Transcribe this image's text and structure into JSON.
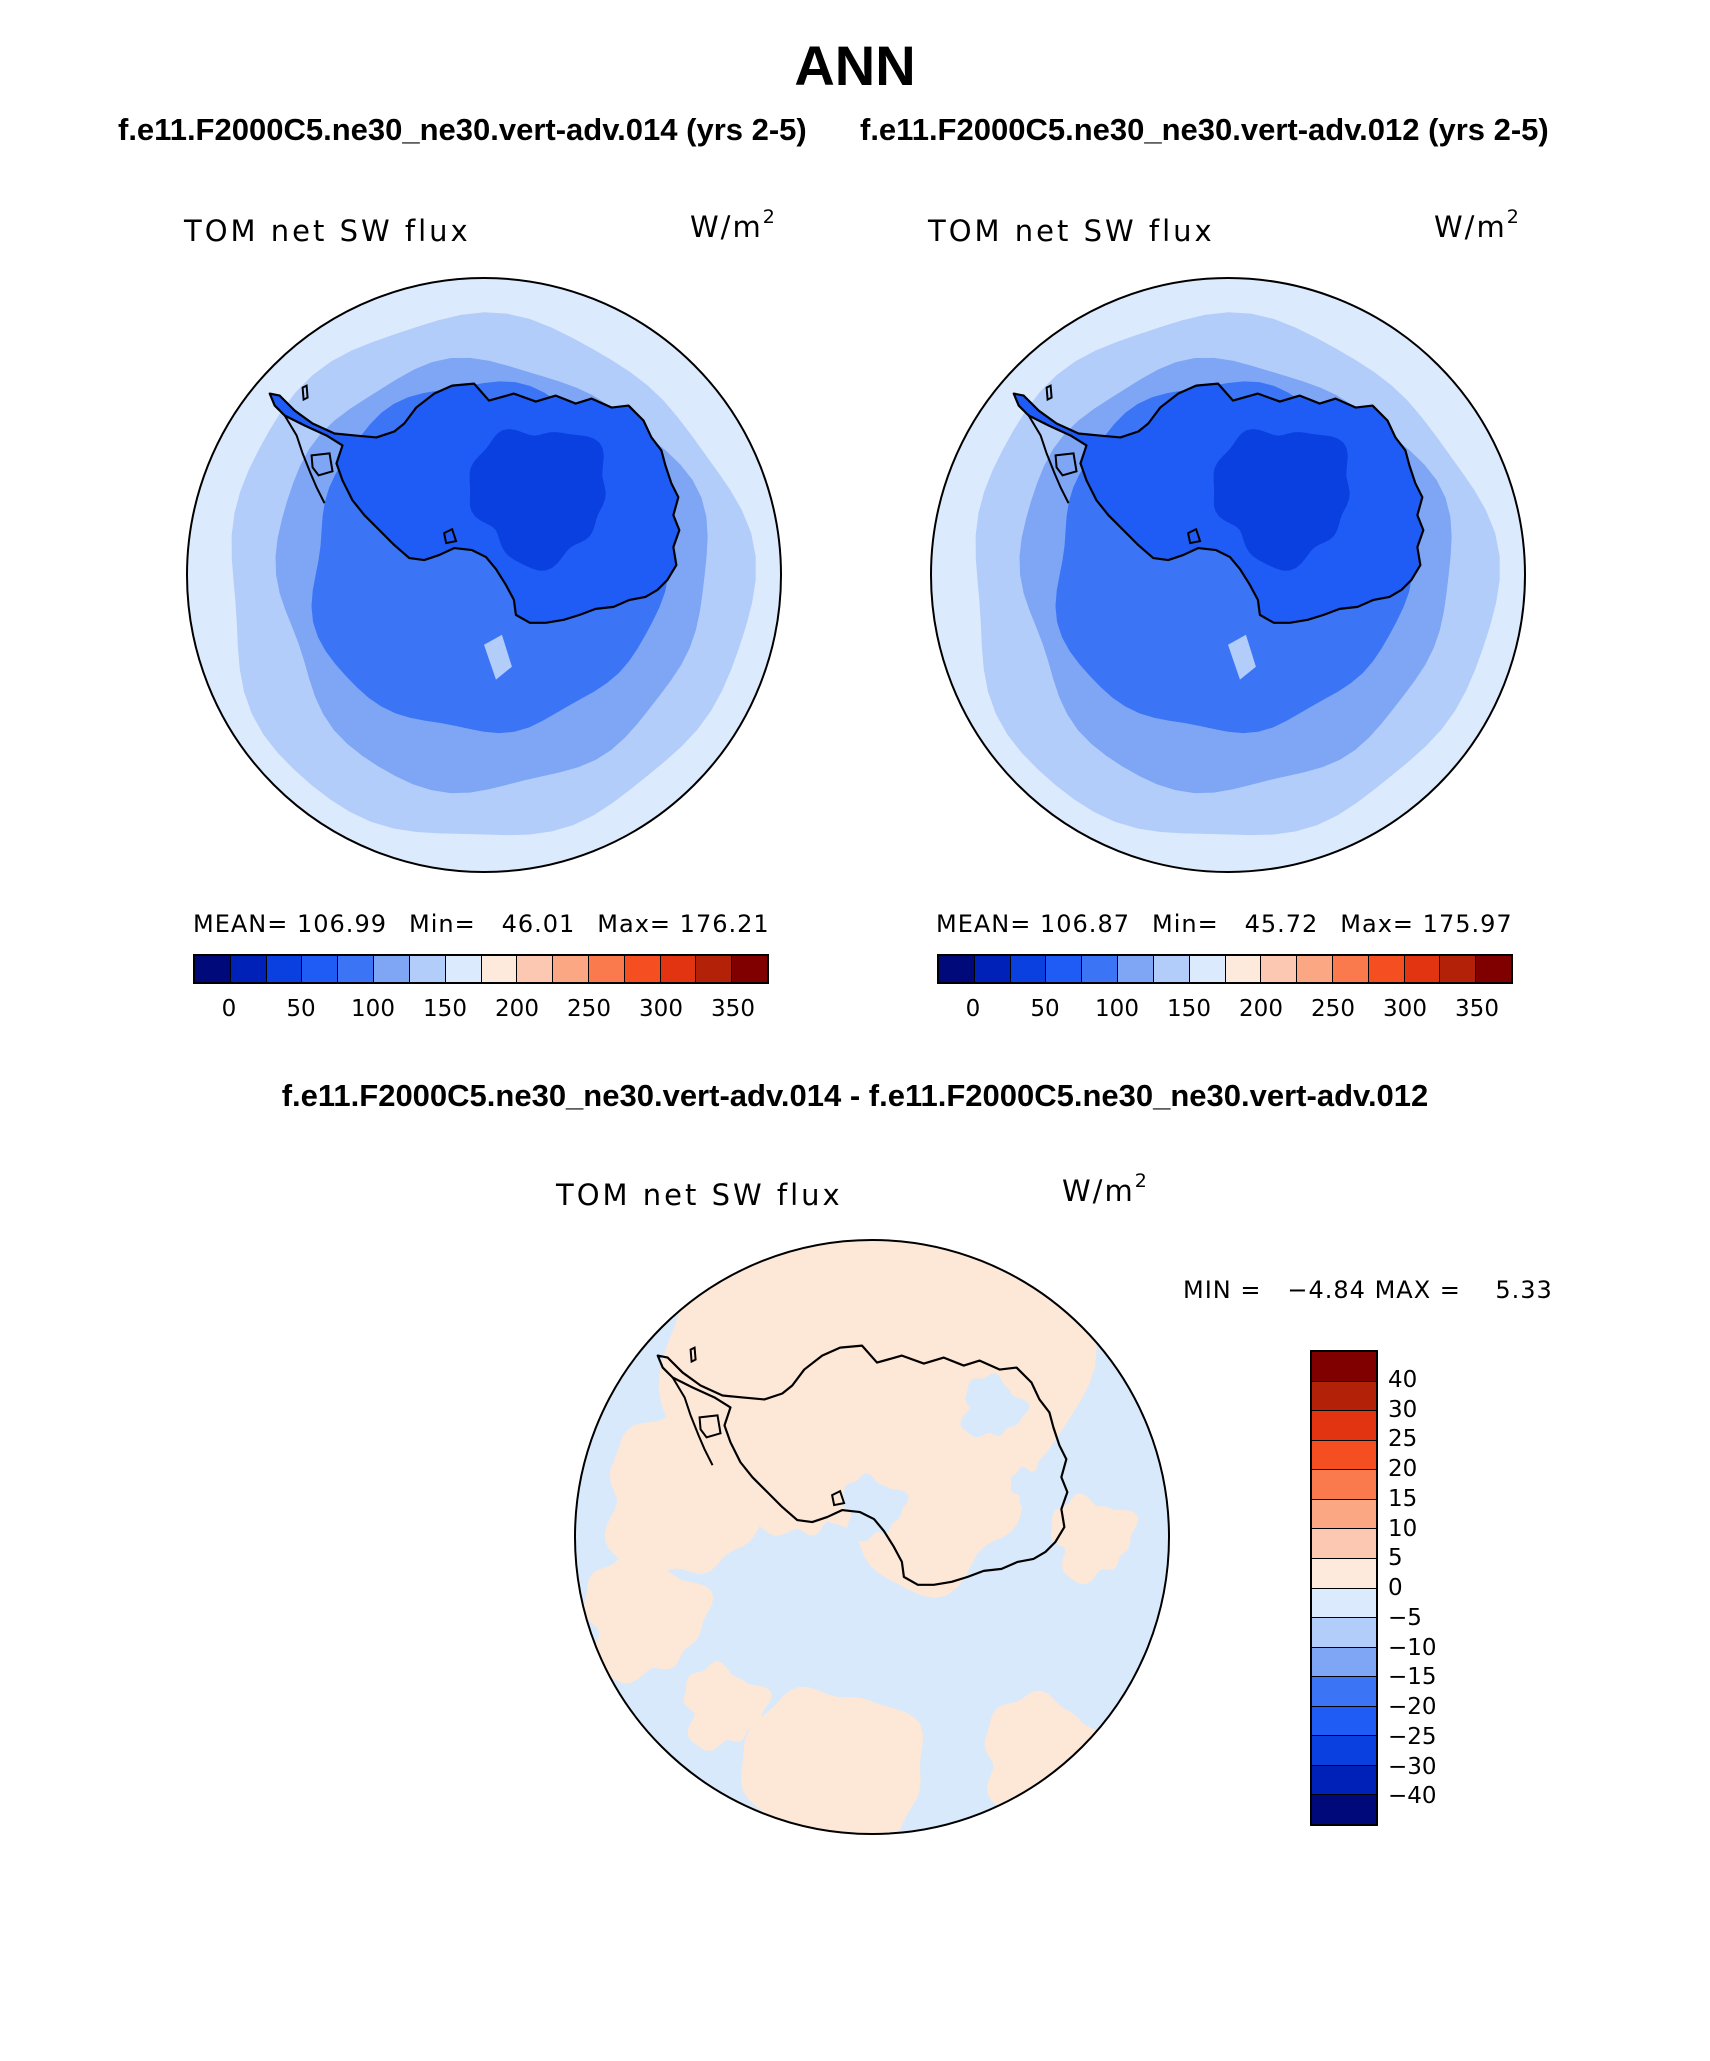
{
  "title": "ANN",
  "case_titles": [
    "f.e11.F2000C5.ne30_ne30.vert-adv.014 (yrs 2-5)",
    "f.e11.F2000C5.ne30_ne30.vert-adv.012 (yrs 2-5)"
  ],
  "diff_title": "f.e11.F2000C5.ne30_ne30.vert-adv.014 - f.e11.F2000C5.ne30_ne30.vert-adv.012",
  "panels": [
    {
      "variable": "TOM net SW flux",
      "units_base": "W/m",
      "units_exp": "2",
      "mean_label": "MEAN=",
      "mean": "106.99",
      "min_label": "Min=",
      "min": "46.01",
      "max_label": "Max=",
      "max": "176.21",
      "colorbar_ticks": [
        "0",
        "50",
        "100",
        "150",
        "200",
        "250",
        "300",
        "350"
      ]
    },
    {
      "variable": "TOM net SW flux",
      "units_base": "W/m",
      "units_exp": "2",
      "mean_label": "MEAN=",
      "mean": "106.87",
      "min_label": "Min=",
      "min": "45.72",
      "max_label": "Max=",
      "max": "175.97",
      "colorbar_ticks": [
        "0",
        "50",
        "100",
        "150",
        "200",
        "250",
        "300",
        "350"
      ]
    }
  ],
  "diff_panel": {
    "variable": "TOM net SW flux",
    "units_base": "W/m",
    "units_exp": "2",
    "min_label": "MIN =",
    "min": "−4.84",
    "max_label": "MAX =",
    "max": "5.33",
    "colorbar_ticks": [
      "40",
      "30",
      "25",
      "20",
      "15",
      "10",
      "5",
      "0",
      "−5",
      "−10",
      "−15",
      "−20",
      "−25",
      "−30",
      "−40"
    ]
  },
  "colors": {
    "abs_scale": [
      "#00097a",
      "#0021b8",
      "#0a3fe0",
      "#1f5bf5",
      "#3b74f5",
      "#7ea6f5",
      "#b3cdfa",
      "#dceafd",
      "#fdeadc",
      "#fcc8b2",
      "#fca783",
      "#fb7a4d",
      "#f44e21",
      "#e23410",
      "#b32108",
      "#800000"
    ],
    "diff_scale": [
      "#800000",
      "#b32108",
      "#e23410",
      "#f44e21",
      "#fb7a4d",
      "#fca783",
      "#fcc8b2",
      "#fdeadc",
      "#dceafd",
      "#b3cdfa",
      "#7ea6f5",
      "#3b74f5",
      "#1f5bf5",
      "#0a3fe0",
      "#0021b8",
      "#00097a"
    ],
    "abs_levels": [
      "#dceafd",
      "#b3cdfa",
      "#7ea6f5",
      "#3b74f5",
      "#1f5bf5",
      "#0a3fe0"
    ],
    "diff_levels": [
      "#d8e9fb",
      "#fde7d7"
    ],
    "coast": "#000000"
  }
}
